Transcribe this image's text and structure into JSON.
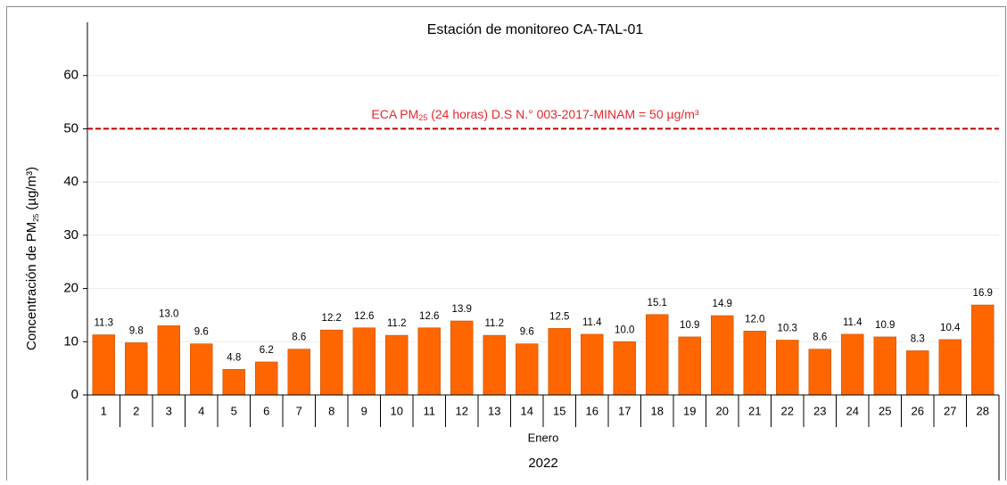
{
  "chart_data": {
    "type": "bar",
    "title": "Estación de monitoreo CA-TAL-01",
    "y_label": {
      "text": "Concentración de PM",
      "sub": "25",
      "unit": " (µg/m³)"
    },
    "categories": [
      "1",
      "2",
      "3",
      "4",
      "5",
      "6",
      "7",
      "8",
      "9",
      "10",
      "11",
      "12",
      "13",
      "14",
      "15",
      "16",
      "17",
      "18",
      "19",
      "20",
      "21",
      "22",
      "23",
      "24",
      "25",
      "26",
      "27",
      "28"
    ],
    "values": [
      11.3,
      9.8,
      13.0,
      9.6,
      4.8,
      6.2,
      8.6,
      12.2,
      12.6,
      11.2,
      12.6,
      13.9,
      11.2,
      9.6,
      12.5,
      11.4,
      10.0,
      15.1,
      10.9,
      14.9,
      12.0,
      10.3,
      8.6,
      11.4,
      10.9,
      8.3,
      10.4,
      16.9
    ],
    "value_labels": [
      "11.3",
      "9.8",
      "13.0",
      "9.6",
      "4.8",
      "6.2",
      "8.6",
      "12.2",
      "12.6",
      "11.2",
      "12.6",
      "13.9",
      "11.2",
      "9.6",
      "12.5",
      "11.4",
      "10.0",
      "15.1",
      "10.9",
      "14.9",
      "12.0",
      "10.3",
      "8.6",
      "11.4",
      "10.9",
      "8.3",
      "10.4",
      "16.9"
    ],
    "color": "#ff6600",
    "ylim": [
      0,
      70
    ],
    "yticks": [
      0,
      10,
      20,
      30,
      40,
      50,
      60
    ],
    "grid": true,
    "x_group": "Enero",
    "x_supergroup": "2022",
    "reference_line": {
      "value": 50,
      "color": "#c00000",
      "label": {
        "text": "ECA PM",
        "sub": "25",
        "rest": " (24 horas) D.S N.° 003-2017-MINAM = 50 µg/m³"
      }
    }
  }
}
